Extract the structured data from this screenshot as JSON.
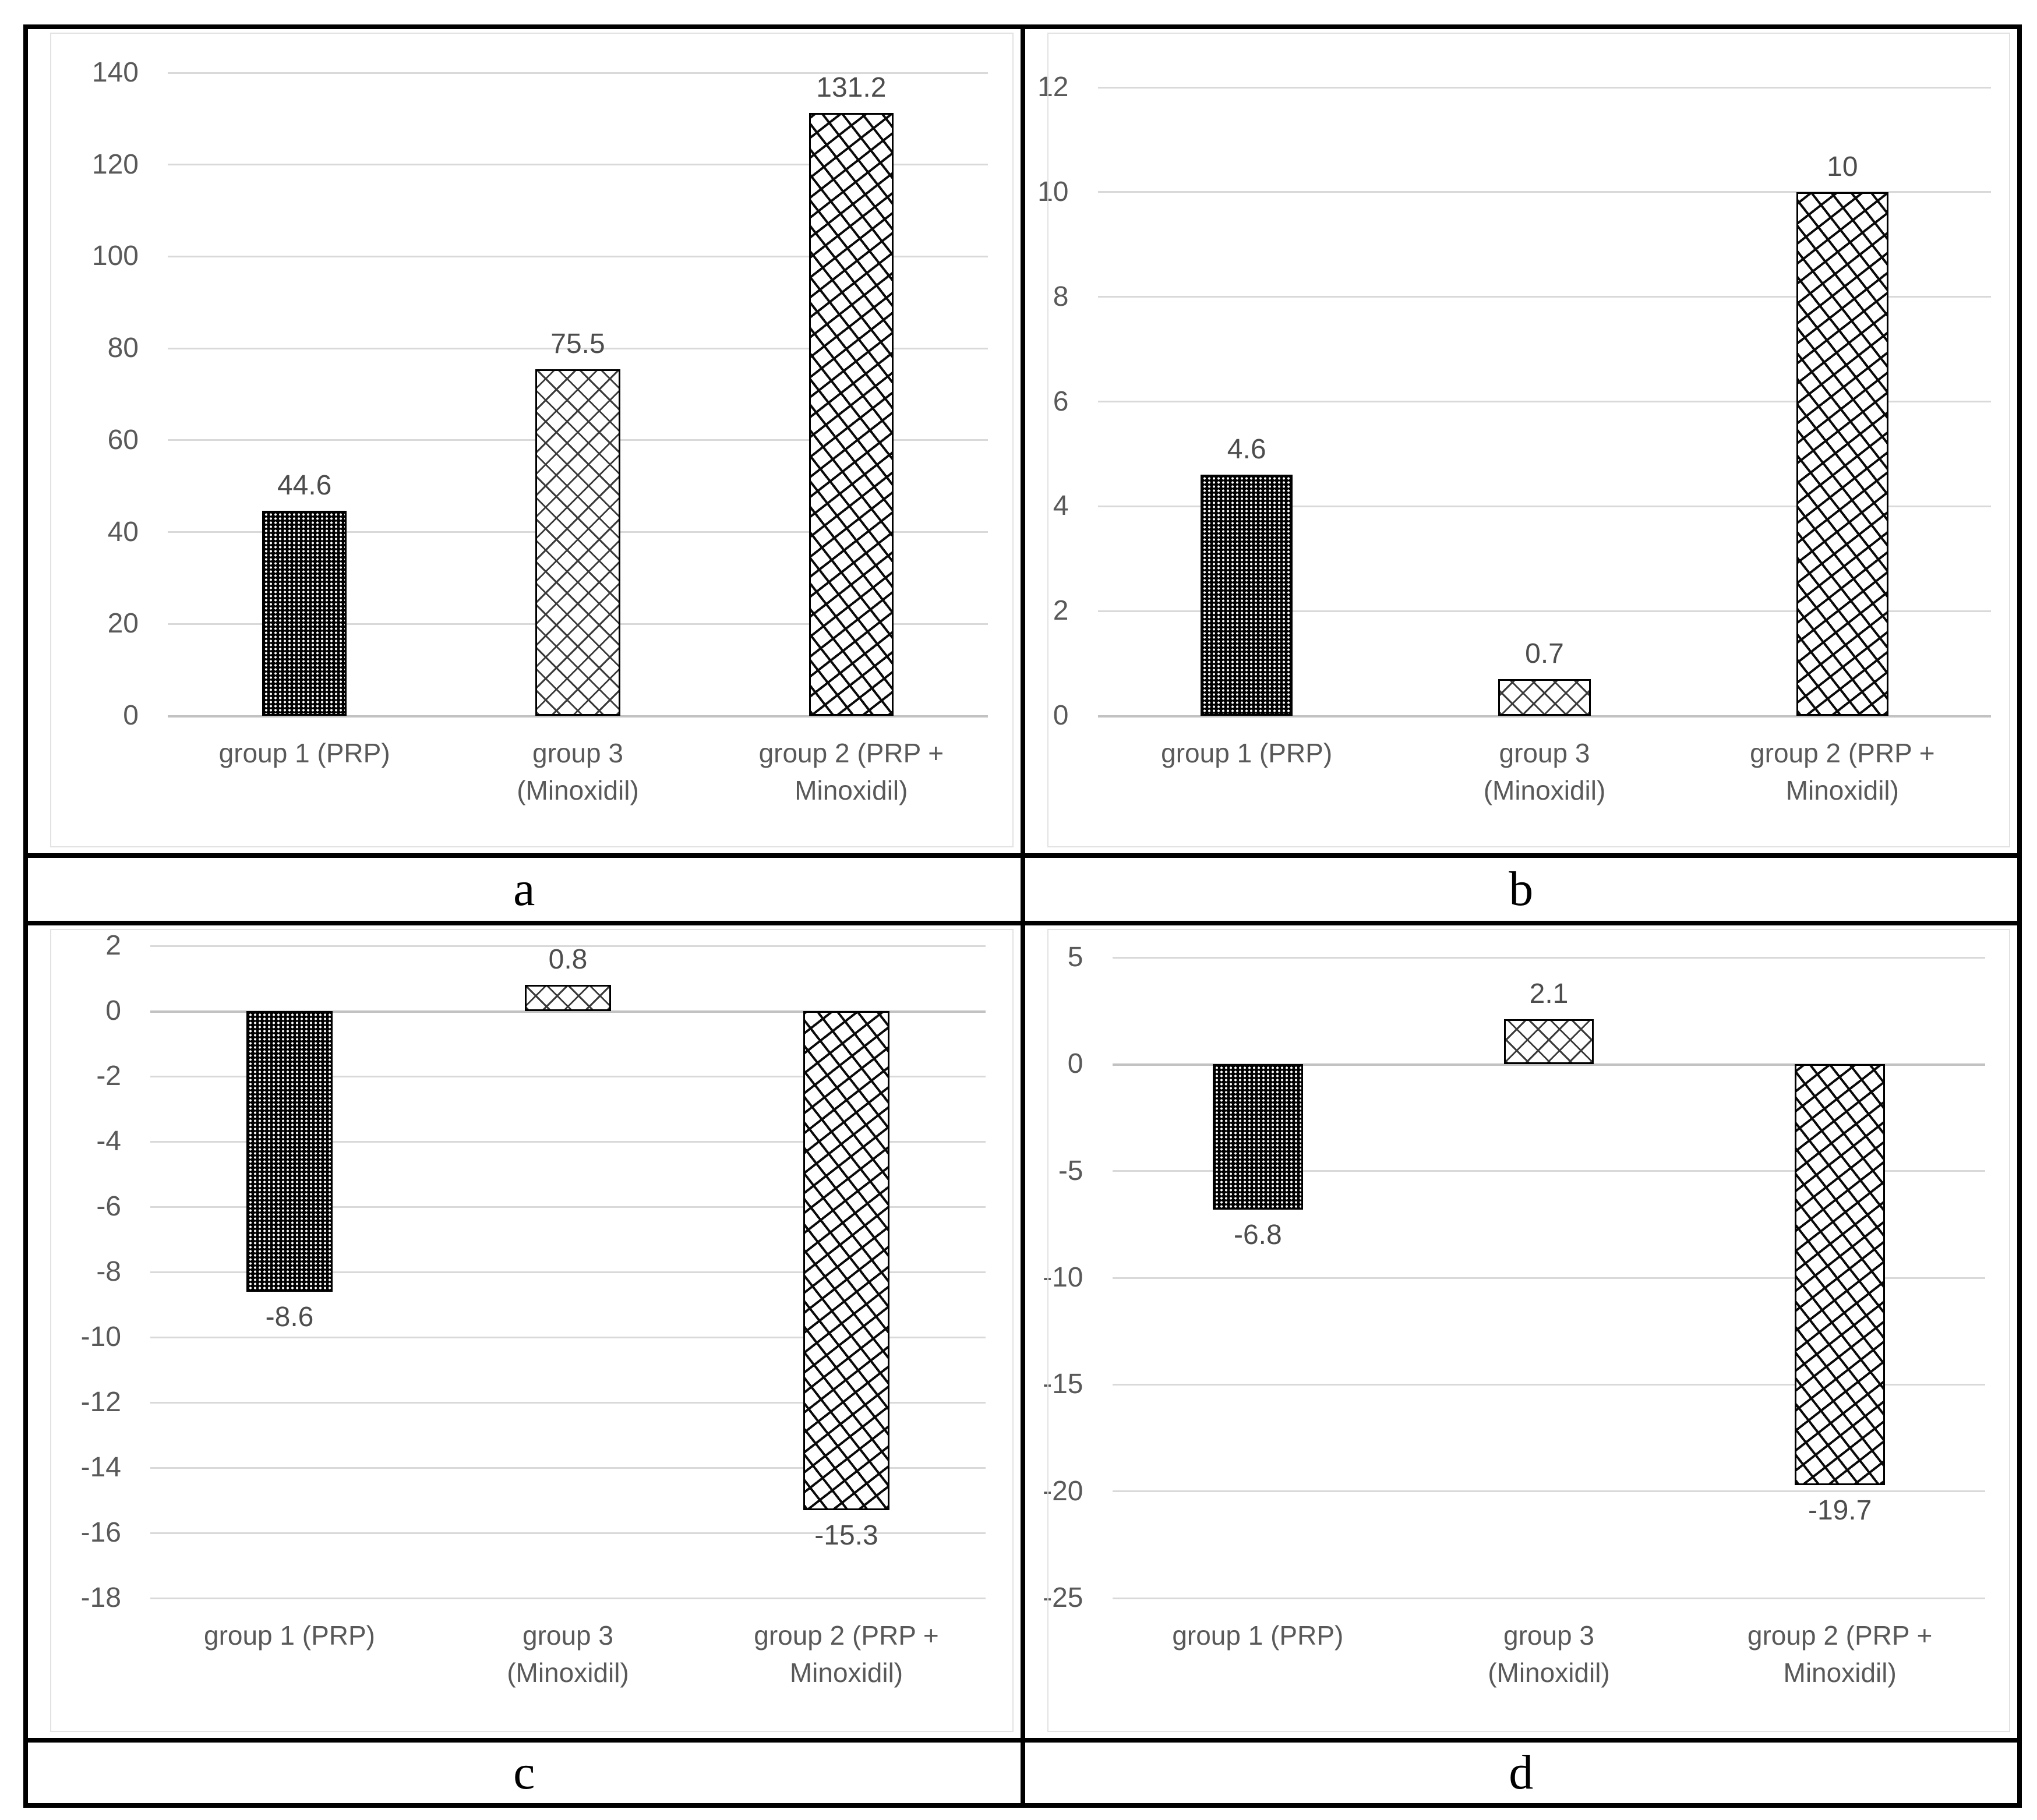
{
  "colors": {
    "text": "#595959",
    "data_label": "#4d4d4d",
    "gridline": "#d9d9d9",
    "zero_line": "#c2c2c2",
    "bar_outline": "#000000",
    "background": "#ffffff",
    "frame_border": "#000000"
  },
  "chart_data": [
    {
      "panel_label": "a",
      "type": "bar",
      "categories": [
        "group 1 (PRP)",
        "group 3 (Minoxidil)",
        "group 2 (PRP + Minoxidil)"
      ],
      "categories_lines": [
        [
          "group 1 (PRP)"
        ],
        [
          "group 3",
          "(Minoxidil)"
        ],
        [
          "group 2 (PRP +",
          "Minoxidil)"
        ]
      ],
      "values": [
        44.6,
        75.5,
        131.2
      ],
      "data_labels": [
        "44.6",
        "75.5",
        "131.2"
      ],
      "ylim": [
        0,
        140
      ],
      "ytick_step": 20,
      "yticks": [
        140,
        120,
        100,
        80,
        60,
        40,
        20,
        0
      ],
      "grid": true,
      "legend": false,
      "patterns": [
        "dotted-black",
        "diamond-crosshatch",
        "diagonal-weave"
      ]
    },
    {
      "panel_label": "b",
      "type": "bar",
      "categories": [
        "group 1 (PRP)",
        "group 3 (Minoxidil)",
        "group 2 (PRP + Minoxidil)"
      ],
      "categories_lines": [
        [
          "group 1 (PRP)"
        ],
        [
          "group 3",
          "(Minoxidil)"
        ],
        [
          "group 2 (PRP +",
          "Minoxidil)"
        ]
      ],
      "values": [
        4.6,
        0.7,
        10
      ],
      "data_labels": [
        "4.6",
        "0.7",
        "10"
      ],
      "ylim": [
        0,
        12
      ],
      "ytick_step": 2,
      "yticks": [
        12,
        10,
        8,
        6,
        4,
        2,
        0
      ],
      "grid": true,
      "legend": false,
      "patterns": [
        "dotted-black",
        "diamond-crosshatch",
        "diagonal-weave"
      ]
    },
    {
      "panel_label": "c",
      "type": "bar",
      "categories": [
        "group 1 (PRP)",
        "group 3 (Minoxidil)",
        "group 2 (PRP + Minoxidil)"
      ],
      "categories_lines": [
        [
          "group 1 (PRP)"
        ],
        [
          "group 3",
          "(Minoxidil)"
        ],
        [
          "group 2 (PRP +",
          "Minoxidil)"
        ]
      ],
      "values": [
        -8.6,
        0.8,
        -15.3
      ],
      "data_labels": [
        "-8.6",
        "0.8",
        "-15.3"
      ],
      "ylim": [
        -18,
        2
      ],
      "ytick_step": 2,
      "yticks": [
        2,
        0,
        -2,
        -4,
        -6,
        -8,
        -10,
        -12,
        -14,
        -16,
        -18
      ],
      "grid": true,
      "legend": false,
      "patterns": [
        "dotted-black",
        "diamond-crosshatch",
        "diagonal-weave"
      ]
    },
    {
      "panel_label": "d",
      "type": "bar",
      "categories": [
        "group 1 (PRP)",
        "group 3 (Minoxidil)",
        "group 2 (PRP + Minoxidil)"
      ],
      "categories_lines": [
        [
          "group 1 (PRP)"
        ],
        [
          "group 3",
          "(Minoxidil)"
        ],
        [
          "group 2 (PRP +",
          "Minoxidil)"
        ]
      ],
      "values": [
        -6.8,
        2.1,
        -19.7
      ],
      "data_labels": [
        "-6.8",
        "2.1",
        "-19.7"
      ],
      "ylim": [
        -25,
        5
      ],
      "ytick_step": 5,
      "yticks": [
        5,
        0,
        -5,
        -10,
        -15,
        -20,
        -25
      ],
      "grid": true,
      "legend": false,
      "patterns": [
        "dotted-black",
        "diamond-crosshatch",
        "diagonal-weave"
      ]
    }
  ]
}
